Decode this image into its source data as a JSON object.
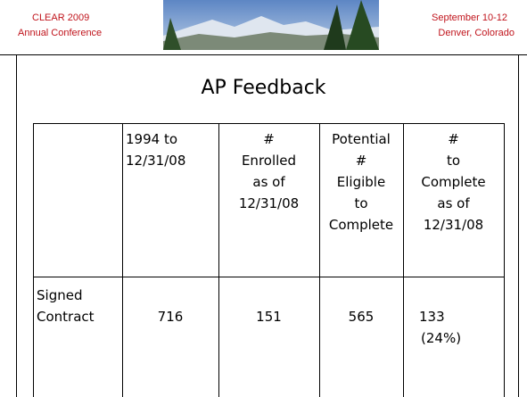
{
  "header": {
    "left": [
      "CLEAR 2009",
      "Annual Conference"
    ],
    "right": [
      "September 10-12",
      "Denver, Colorado"
    ]
  },
  "title": "AP Feedback",
  "table": {
    "columns": [
      [
        "1994 to",
        "12/31/08"
      ],
      [
        "#",
        "Enrolled",
        "as of",
        "12/31/08"
      ],
      [
        "Potential",
        "#",
        "Eligible",
        "to",
        "Complete"
      ],
      [
        "#",
        "to",
        "Complete",
        "as of",
        "12/31/08"
      ]
    ],
    "rows": [
      {
        "label": [
          "Signed",
          "Contract"
        ],
        "cells": [
          [
            "716"
          ],
          [
            "151"
          ],
          [
            "565"
          ],
          [
            "133",
            "(24%)"
          ]
        ]
      }
    ]
  }
}
